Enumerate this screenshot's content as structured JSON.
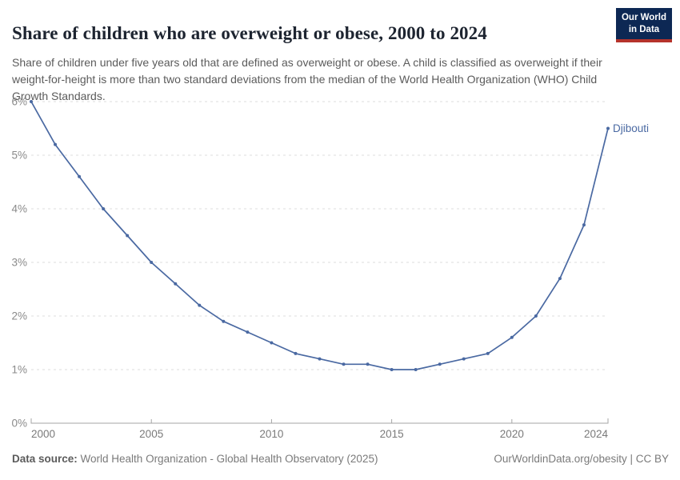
{
  "header": {
    "title": "Share of children who are overweight or obese, 2000 to 2024",
    "subtitle": "Share of children under five years old that are defined as overweight or obese. A child is classified as overweight if their weight-for-height is more than two standard deviations from the median of the World Health Organization (WHO) Child Growth Standards.",
    "logo": {
      "line1": "Our World",
      "line2": "in Data",
      "bg_color": "#0d2854",
      "accent_color": "#b5332b"
    }
  },
  "chart_data": {
    "type": "line",
    "title": "Share of children who are overweight or obese, 2000 to 2024",
    "x": [
      2000,
      2001,
      2002,
      2003,
      2004,
      2005,
      2006,
      2007,
      2008,
      2009,
      2010,
      2011,
      2012,
      2013,
      2014,
      2015,
      2016,
      2017,
      2018,
      2019,
      2020,
      2021,
      2022,
      2023,
      2024
    ],
    "series": [
      {
        "name": "Djibouti",
        "color": "#4a69a2",
        "values": [
          6.0,
          5.2,
          4.6,
          4.0,
          3.5,
          3.0,
          2.6,
          2.2,
          1.9,
          1.7,
          1.5,
          1.3,
          1.2,
          1.1,
          1.1,
          1.0,
          1.0,
          1.1,
          1.2,
          1.3,
          1.6,
          2.0,
          2.7,
          3.7,
          5.5
        ]
      }
    ],
    "xlim": [
      2000,
      2024
    ],
    "ylim": [
      0,
      6
    ],
    "xticks": [
      2000,
      2005,
      2010,
      2015,
      2020,
      2024
    ],
    "yticks": [
      0,
      1,
      2,
      3,
      4,
      5,
      6
    ],
    "ytick_suffix": "%",
    "grid": "horizontal-dashed",
    "legend_position": "end-of-line-label",
    "end_label": "Djibouti"
  },
  "footer": {
    "datasource_label": "Data source:",
    "datasource_text": " World Health Organization - Global Health Observatory (2025)",
    "rights": "OurWorldinData.org/obesity | CC BY"
  }
}
